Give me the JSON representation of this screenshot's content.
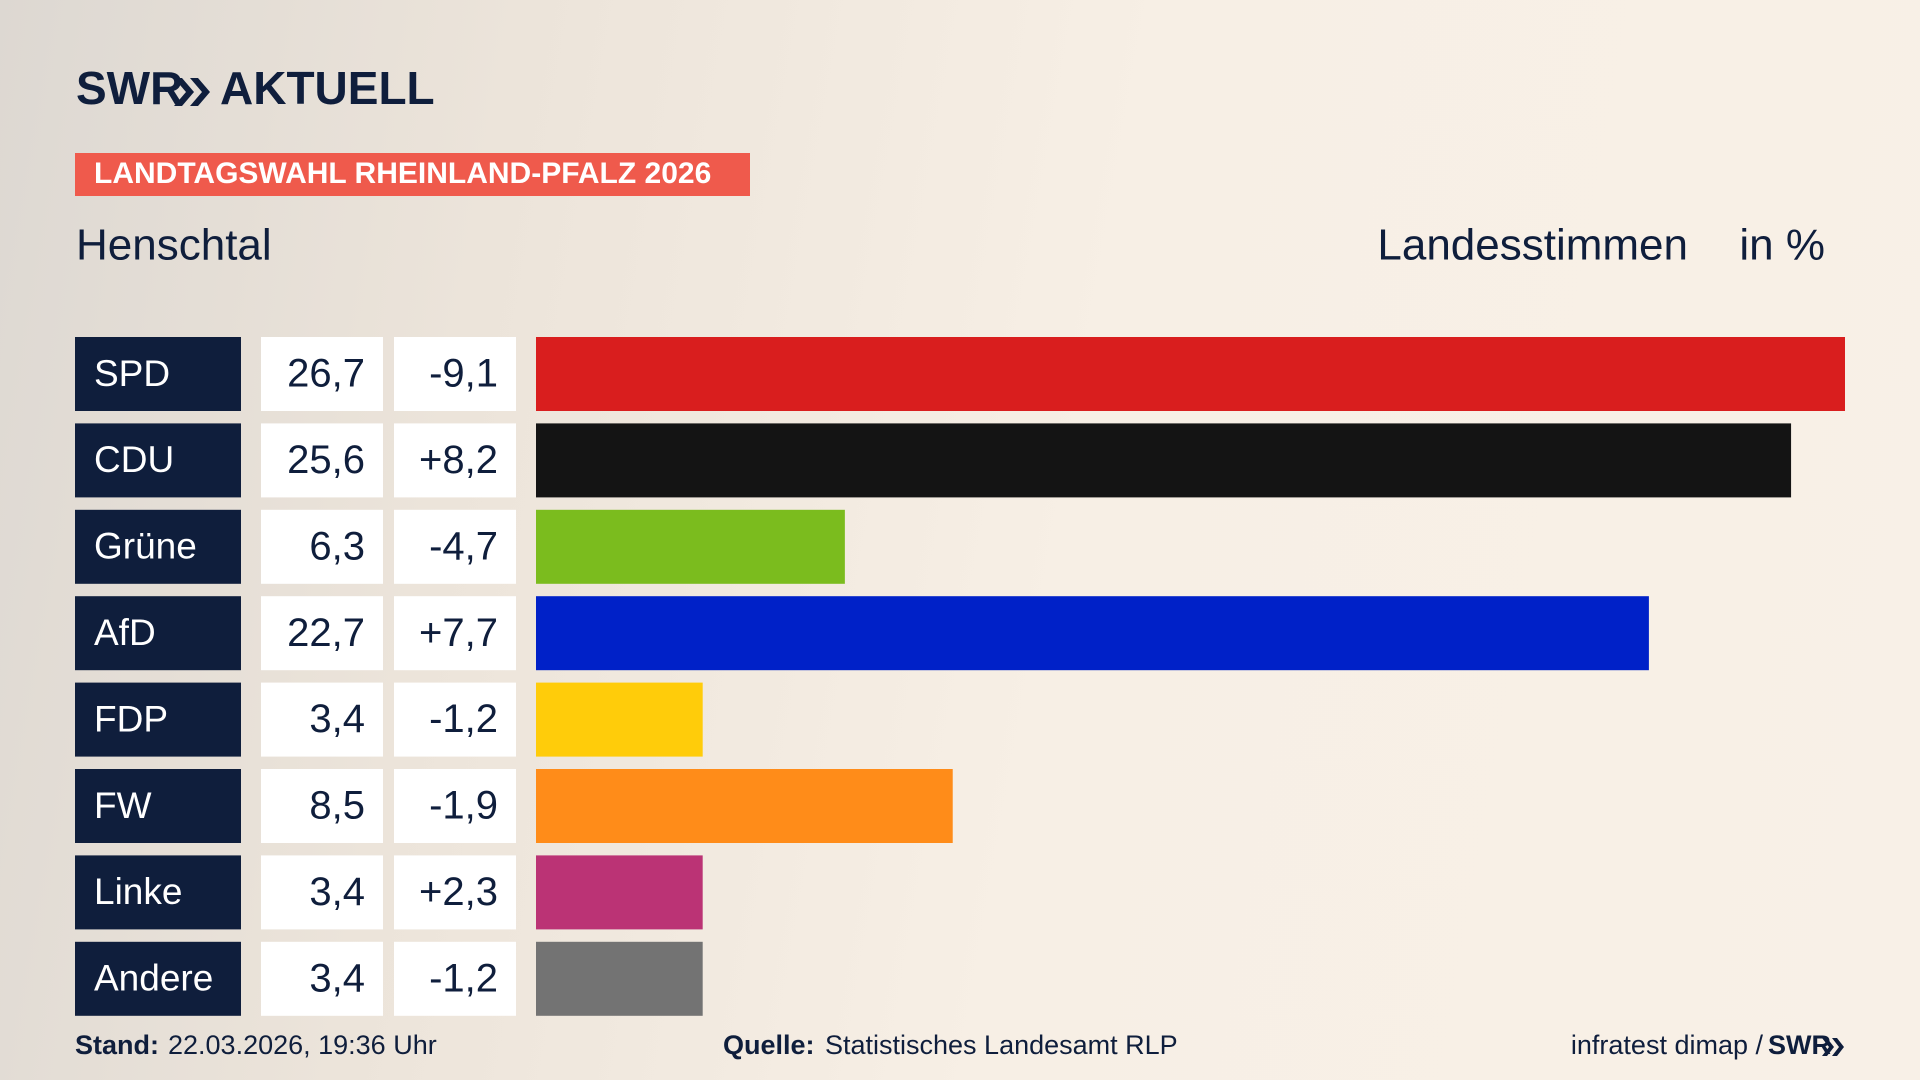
{
  "brand": "SWR",
  "brand_sub": "AKTUELL",
  "chart_data": {
    "type": "bar",
    "tag": "LANDTAGSWAHL RHEINLAND-PFALZ 2026",
    "title": "Henschtal",
    "measure": "Landesstimmen",
    "unit": "in %",
    "categories": [
      "SPD",
      "CDU",
      "Grüne",
      "AfD",
      "FDP",
      "FW",
      "Linke",
      "Andere"
    ],
    "values": [
      26.7,
      25.6,
      6.3,
      22.7,
      3.4,
      8.5,
      3.4,
      3.4
    ],
    "value_labels": [
      "26,7",
      "25,6",
      "6,3",
      "22,7",
      "3,4",
      "8,5",
      "3,4",
      "3,4"
    ],
    "changes": [
      -9.1,
      8.2,
      -4.7,
      7.7,
      -1.2,
      -1.9,
      2.3,
      -1.2
    ],
    "change_labels": [
      "-9,1",
      "+8,2",
      "-4,7",
      "+7,7",
      "-1,2",
      "-1,9",
      "+2,3",
      "-1,2"
    ],
    "colors": [
      "#d91e1e",
      "#141414",
      "#7bbc1e",
      "#0021c8",
      "#ffcc0a",
      "#ff8c19",
      "#bb3375",
      "#737373"
    ]
  },
  "footer": {
    "stand_label": "Stand:",
    "stand": "22.03.2026, 19:36 Uhr",
    "source_label": "Quelle:",
    "source": "Statistisches Landesamt RLP",
    "credit": "infratest dimap /",
    "credit_brand": "SWR"
  }
}
